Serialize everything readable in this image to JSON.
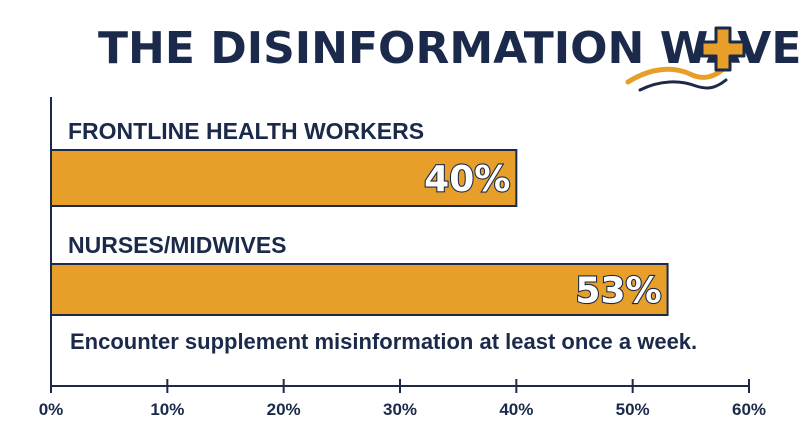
{
  "title": "THE DISINFORMATION WAVE",
  "note": "Encounter supplement misinformation at least once a week.",
  "colors": {
    "bar": "#e89f2a",
    "ink": "#1b2a4a",
    "wave_gold": "#e89f2a",
    "wave_navy": "#1b2a4a"
  },
  "icons": [
    "wave-icon",
    "plus-icon"
  ],
  "chart_data": {
    "type": "bar",
    "orientation": "horizontal",
    "categories": [
      "FRONTLINE HEALTH WORKERS",
      "NURSES/MIDWIVES"
    ],
    "values": [
      40,
      53
    ],
    "data_labels": [
      "40%",
      "53%"
    ],
    "title": "THE DISINFORMATION WAVE",
    "xlim": [
      0,
      60
    ],
    "xticks": [
      "0%",
      "10%",
      "20%",
      "30%",
      "40%",
      "50%",
      "60%"
    ],
    "grid": false
  }
}
